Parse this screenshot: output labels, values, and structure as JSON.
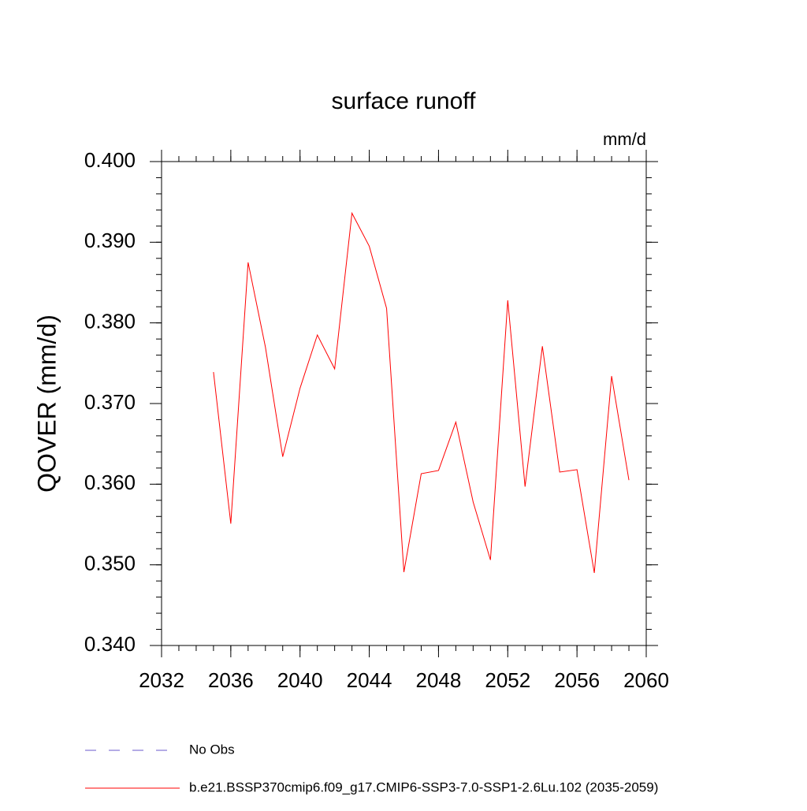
{
  "chart_data": {
    "type": "line",
    "title": "surface runoff",
    "units": "mm/d",
    "y_label": "QOVER  (mm/d)",
    "x": [
      2035,
      2036,
      2037,
      2038,
      2039,
      2040,
      2041,
      2042,
      2043,
      2044,
      2045,
      2046,
      2047,
      2048,
      2049,
      2050,
      2051,
      2052,
      2053,
      2054,
      2055,
      2056,
      2057,
      2058,
      2059
    ],
    "series": [
      {
        "name": "No Obs",
        "color": "#6a5acd",
        "dashed": true,
        "values": [
          null,
          null,
          null,
          null,
          null,
          null,
          null,
          null,
          null,
          null,
          null,
          null,
          null,
          null,
          null,
          null,
          null,
          null,
          null,
          null,
          null,
          null,
          null,
          null,
          null
        ]
      },
      {
        "name": "b.e21.BSSP370cmip6.f09_g17.CMIP6-SSP3-7.0-SSP1-2.6Lu.102 (2035-2059)",
        "color": "#ff0000",
        "dashed": false,
        "values": [
          0.3739,
          0.3551,
          0.3875,
          0.377,
          0.3634,
          0.3719,
          0.3785,
          0.3743,
          0.3936,
          0.3895,
          0.3818,
          0.3491,
          0.3613,
          0.3617,
          0.3677,
          0.3578,
          0.3506,
          0.3828,
          0.3597,
          0.3771,
          0.3615,
          0.3618,
          0.349,
          0.3734,
          0.3605
        ]
      }
    ],
    "xlim": [
      2032,
      2060
    ],
    "xticks": [
      2032,
      2036,
      2040,
      2044,
      2048,
      2052,
      2056,
      2060
    ],
    "xminorticks": [
      2032,
      2033,
      2034,
      2035,
      2036,
      2037,
      2038,
      2039,
      2040,
      2041,
      2042,
      2043,
      2044,
      2045,
      2046,
      2047,
      2048,
      2049,
      2050,
      2051,
      2052,
      2053,
      2054,
      2055,
      2056,
      2057,
      2058,
      2059,
      2060
    ],
    "ylim": [
      0.34,
      0.4
    ],
    "yticks": [
      {
        "value": 0.34,
        "label": "0.340"
      },
      {
        "value": 0.35,
        "label": "0.350"
      },
      {
        "value": 0.36,
        "label": "0.360"
      },
      {
        "value": 0.37,
        "label": "0.370"
      },
      {
        "value": 0.38,
        "label": "0.380"
      },
      {
        "value": 0.39,
        "label": "0.390"
      },
      {
        "value": 0.4,
        "label": "0.400"
      }
    ],
    "yminorticks": [
      0.34,
      0.342,
      0.344,
      0.346,
      0.348,
      0.35,
      0.352,
      0.354,
      0.356,
      0.358,
      0.36,
      0.362,
      0.364,
      0.366,
      0.368,
      0.37,
      0.372,
      0.374,
      0.376,
      0.378,
      0.38,
      0.382,
      0.384,
      0.386,
      0.388,
      0.39,
      0.392,
      0.394,
      0.396,
      0.398,
      0.4
    ],
    "grid": false
  }
}
